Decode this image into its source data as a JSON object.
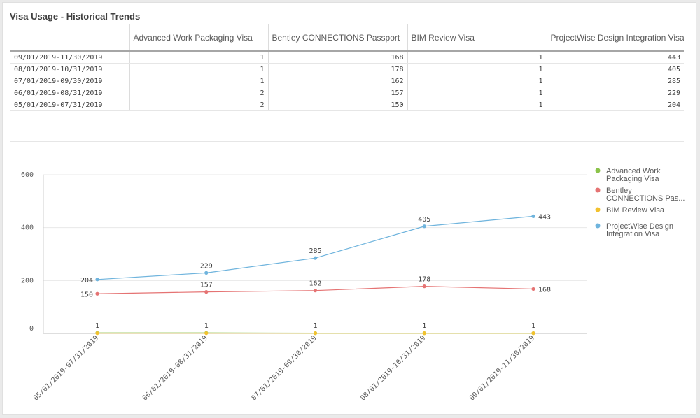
{
  "panel": {
    "title": "Visa Usage - Historical Trends"
  },
  "table": {
    "columns": [
      "",
      "Advanced Work Packaging Visa",
      "Bentley CONNECTIONS Passport",
      "BIM Review Visa",
      "ProjectWise Design Integration Visa"
    ],
    "rows": [
      [
        "09/01/2019-11/30/2019",
        "1",
        "168",
        "1",
        "443"
      ],
      [
        "08/01/2019-10/31/2019",
        "1",
        "178",
        "1",
        "405"
      ],
      [
        "07/01/2019-09/30/2019",
        "1",
        "162",
        "1",
        "285"
      ],
      [
        "06/01/2019-08/31/2019",
        "2",
        "157",
        "1",
        "229"
      ],
      [
        "05/01/2019-07/31/2019",
        "2",
        "150",
        "1",
        "204"
      ]
    ]
  },
  "chart_data": {
    "type": "line",
    "categories": [
      "05/01/2019-07/31/2019",
      "06/01/2019-08/31/2019",
      "07/01/2019-09/30/2019",
      "08/01/2019-10/31/2019",
      "09/01/2019-11/30/2019"
    ],
    "yticks": [
      0,
      200,
      400,
      600
    ],
    "ylim": [
      0,
      600
    ],
    "grid": true,
    "legend_position": "right",
    "series": [
      {
        "name": "Advanced Work Packaging Visa",
        "legend_lines": [
          "Advanced Work",
          "Packaging Visa"
        ],
        "color": "#8bc34a",
        "values": [
          2,
          2,
          1,
          1,
          1
        ]
      },
      {
        "name": "Bentley CONNECTIONS Passport",
        "legend_lines": [
          "Bentley",
          "CONNECTIONS Pas..."
        ],
        "color": "#e57373",
        "values": [
          150,
          157,
          162,
          178,
          168
        ]
      },
      {
        "name": "BIM Review Visa",
        "legend_lines": [
          "BIM Review Visa"
        ],
        "color": "#f2c12e",
        "values": [
          1,
          1,
          1,
          1,
          1
        ]
      },
      {
        "name": "ProjectWise Design Integration Visa",
        "legend_lines": [
          "ProjectWise Design",
          "Integration Visa"
        ],
        "color": "#6fb4dd",
        "values": [
          204,
          229,
          285,
          405,
          443
        ]
      }
    ],
    "point_labels": [
      {
        "series": 3,
        "values": [
          "204",
          "229",
          "285",
          "405",
          "443"
        ]
      },
      {
        "series": 1,
        "values": [
          "150",
          "157",
          "162",
          "178",
          "168"
        ]
      },
      {
        "series": 2,
        "values": [
          "1",
          "1",
          "1",
          "1",
          "1"
        ]
      }
    ]
  }
}
